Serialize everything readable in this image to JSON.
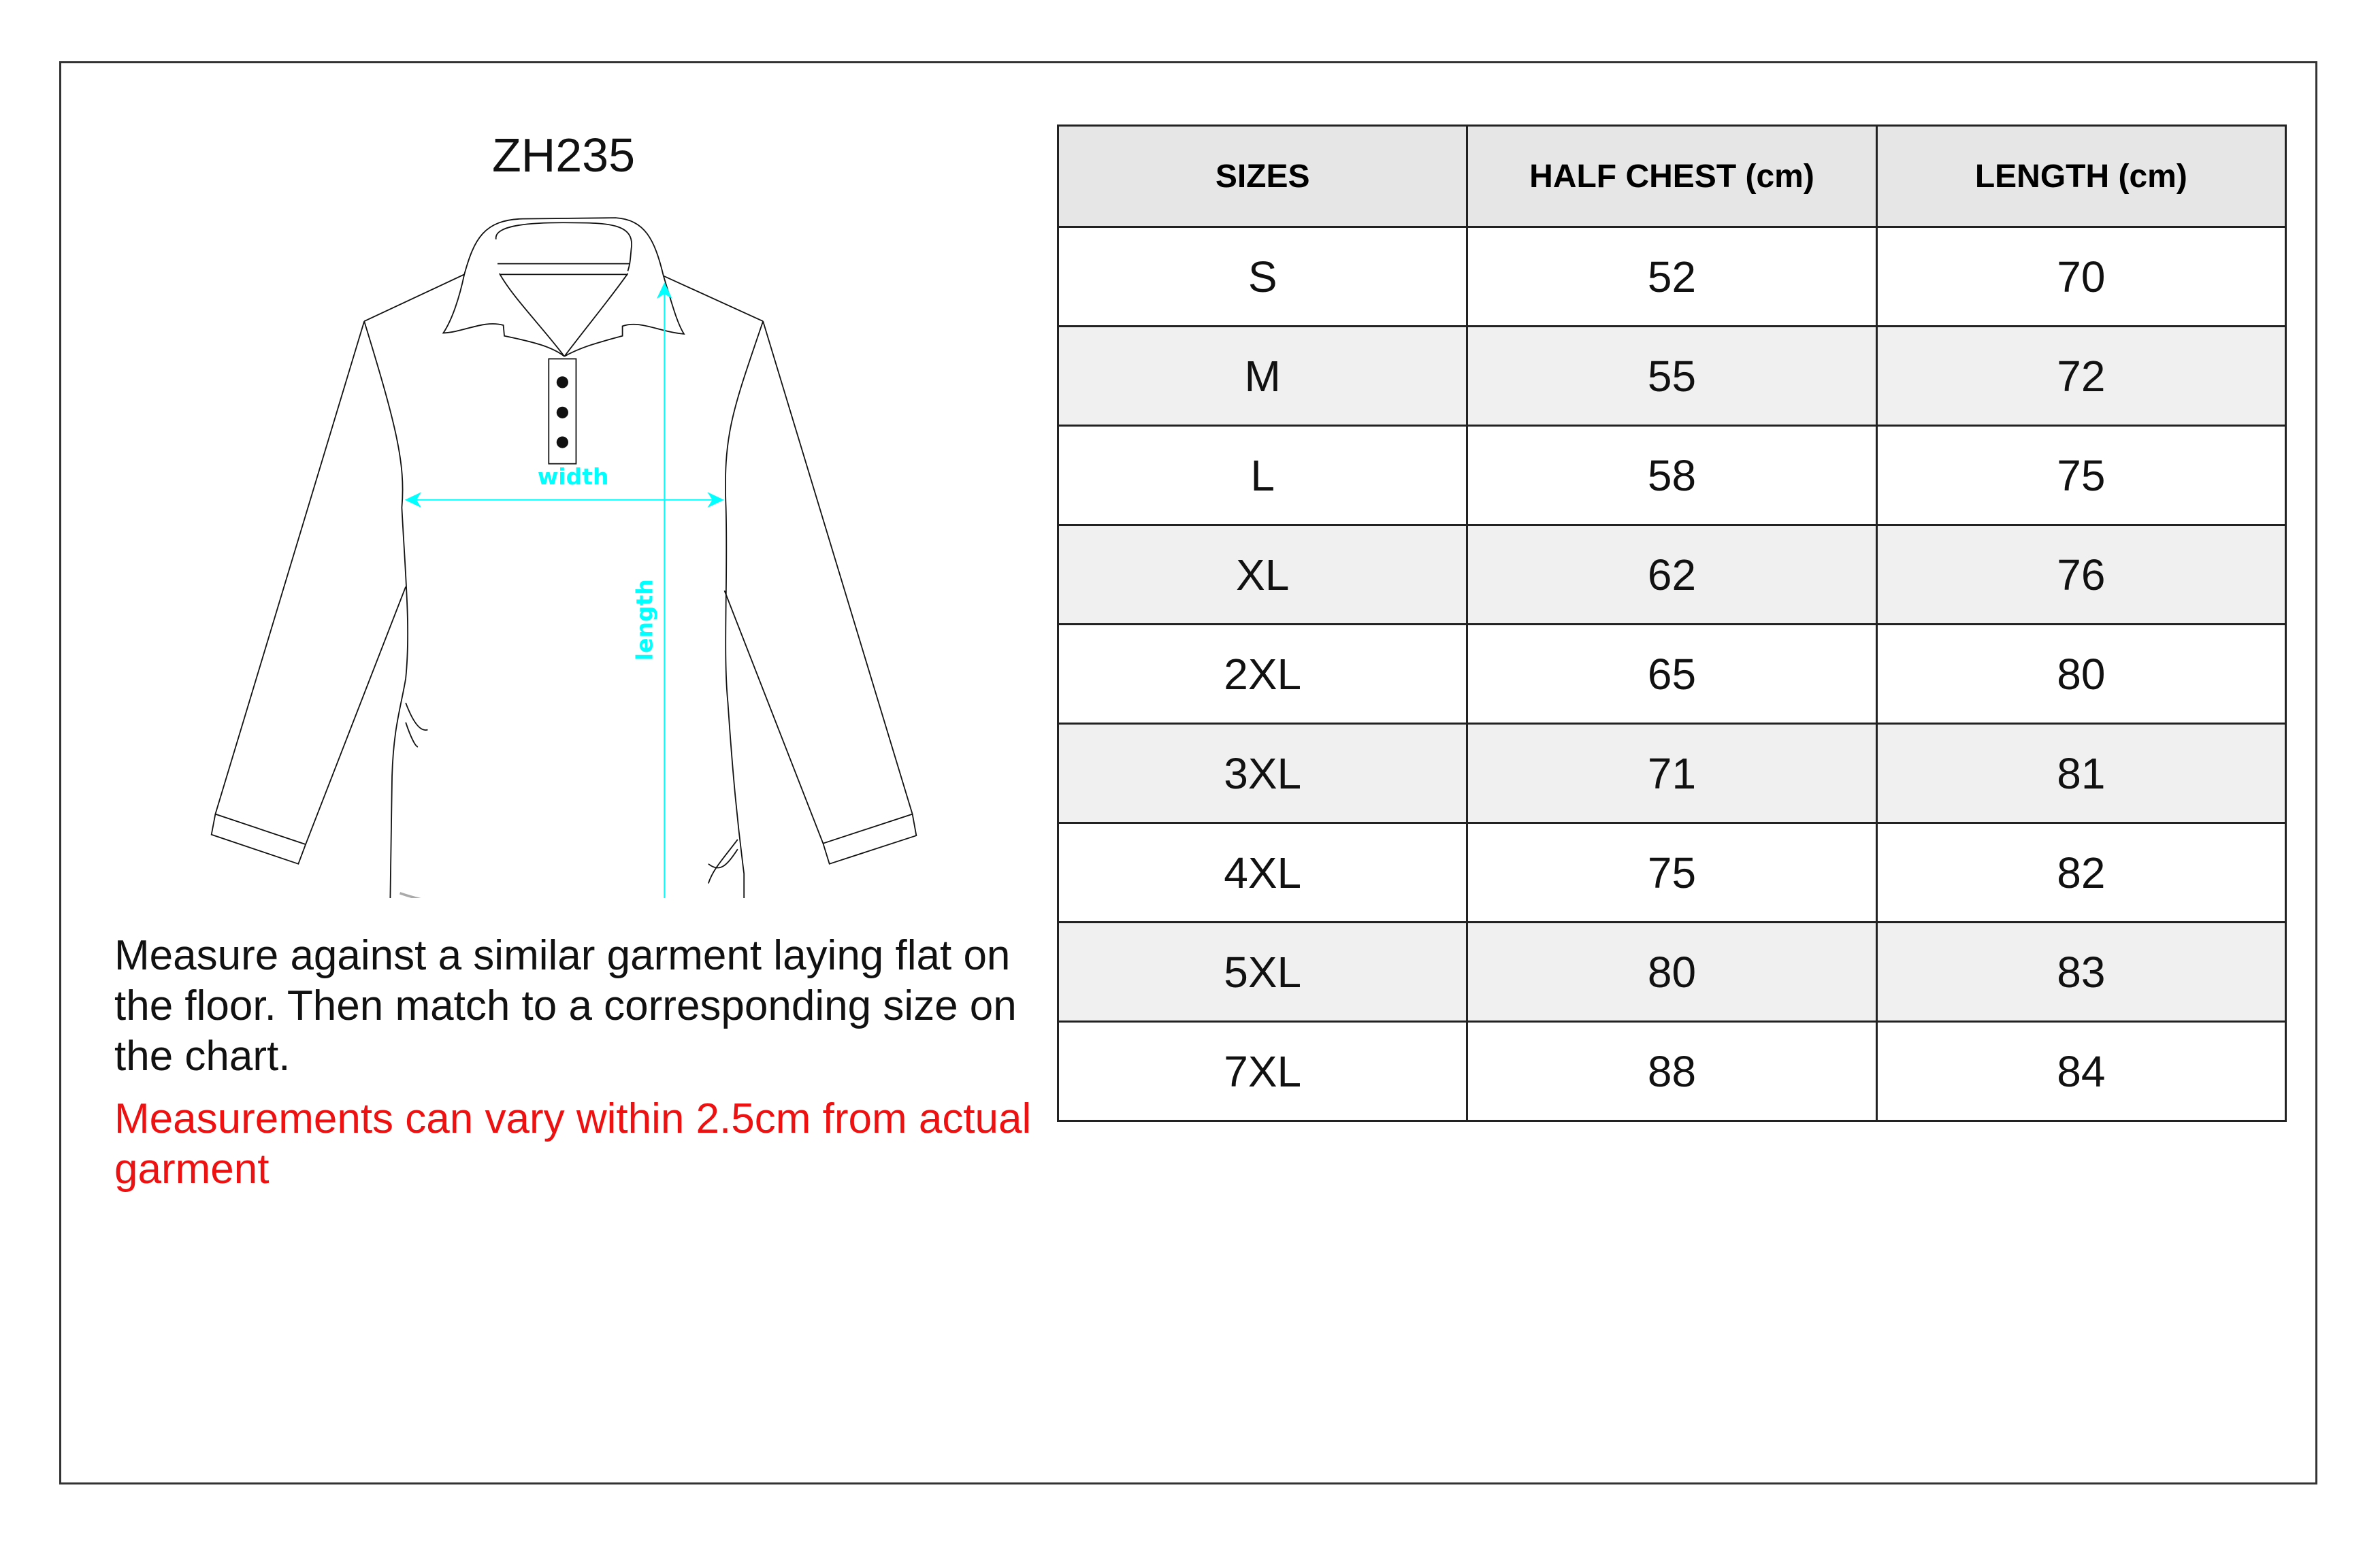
{
  "title": "ZH235",
  "diagram": {
    "width_label": "width",
    "length_label": "length",
    "arrow_color": "#00ffff"
  },
  "instructions": "Measure against a similar garment laying flat on the floor. Then match to a corresponding size on the chart.",
  "warning": "Measurements can vary within 2.5cm from actual garment",
  "warning_color": "#ee1111",
  "table": {
    "headers": [
      "SIZES",
      "HALF CHEST (cm)",
      "LENGTH (cm)"
    ],
    "rows": [
      [
        "S",
        "52",
        "70"
      ],
      [
        "M",
        "55",
        "72"
      ],
      [
        "L",
        "58",
        "75"
      ],
      [
        "XL",
        "62",
        "76"
      ],
      [
        "2XL",
        "65",
        "80"
      ],
      [
        "3XL",
        "71",
        "81"
      ],
      [
        "4XL",
        "75",
        "82"
      ],
      [
        "5XL",
        "80",
        "83"
      ],
      [
        "7XL",
        "88",
        "84"
      ]
    ]
  }
}
